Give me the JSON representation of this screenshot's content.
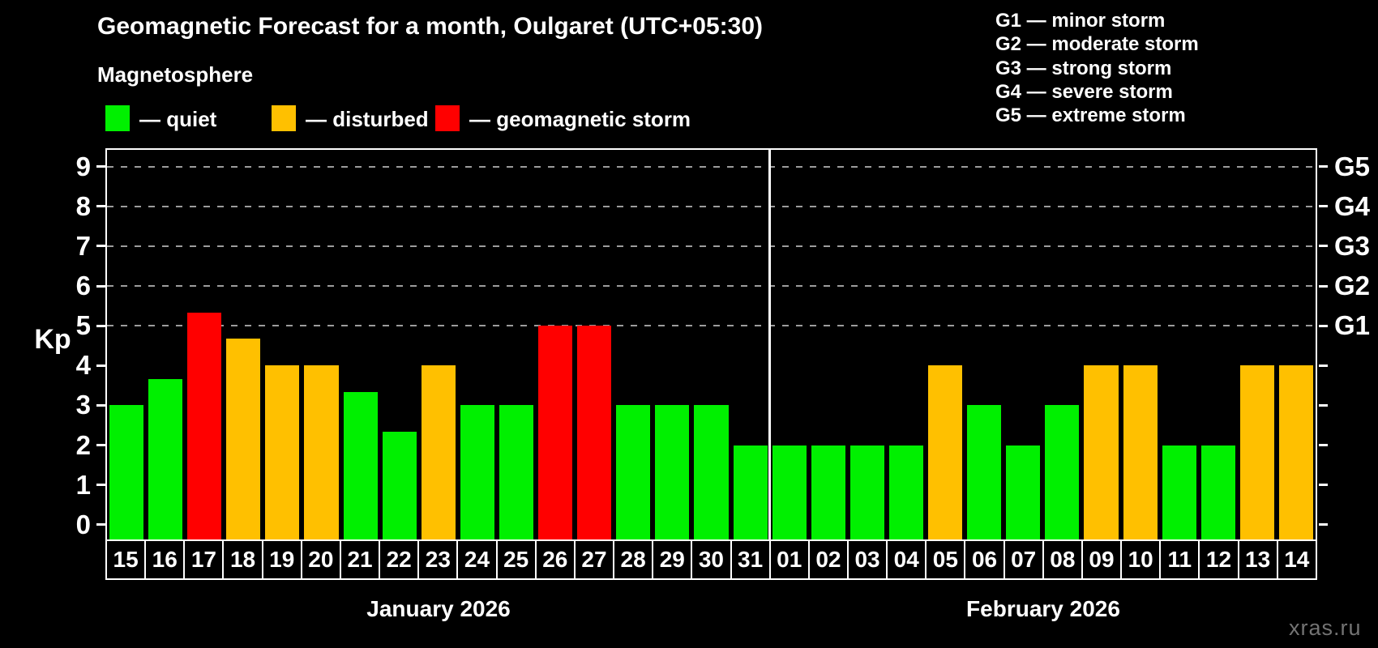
{
  "title": "Geomagnetic Forecast for a month, Oulgaret (UTC+05:30)",
  "subtitle": "Magnetosphere",
  "legend": {
    "items": [
      {
        "key": "quiet",
        "label": "— quiet",
        "color": "#00f000"
      },
      {
        "key": "disturbed",
        "label": "— disturbed",
        "color": "#ffc000"
      },
      {
        "key": "storm",
        "label": "— geomagnetic storm",
        "color": "#ff0000"
      }
    ]
  },
  "g_scale_legend": [
    "G1 — minor storm",
    "G2 — moderate storm",
    "G3 — strong storm",
    "G4 — severe storm",
    "G5 — extreme storm"
  ],
  "watermark": "xras.ru",
  "chart_data": {
    "type": "bar",
    "title": "Geomagnetic Forecast for a month, Oulgaret (UTC+05:30)",
    "ylabel": "Kp",
    "ylim": [
      0,
      9
    ],
    "yticks": [
      0,
      1,
      2,
      3,
      4,
      5,
      6,
      7,
      8,
      9
    ],
    "gridlines_at": [
      5,
      6,
      7,
      8,
      9
    ],
    "grid_style": "dashed horizontal gray lines at Kp 5..9, black background",
    "g_levels": [
      {
        "kp": 5,
        "label": "G1"
      },
      {
        "kp": 6,
        "label": "G2"
      },
      {
        "kp": 7,
        "label": "G3"
      },
      {
        "kp": 8,
        "label": "G4"
      },
      {
        "kp": 9,
        "label": "G5"
      }
    ],
    "status_colors": {
      "quiet": "#00f000",
      "disturbed": "#ffc000",
      "storm": "#ff0000"
    },
    "months": [
      {
        "label": "January 2026",
        "days": 17
      },
      {
        "label": "February 2026",
        "days": 14
      }
    ],
    "bars": [
      {
        "day": "15",
        "value": 3.0,
        "status": "quiet"
      },
      {
        "day": "16",
        "value": 3.67,
        "status": "quiet"
      },
      {
        "day": "17",
        "value": 5.33,
        "status": "storm"
      },
      {
        "day": "18",
        "value": 4.67,
        "status": "disturbed"
      },
      {
        "day": "19",
        "value": 4.0,
        "status": "disturbed"
      },
      {
        "day": "20",
        "value": 4.0,
        "status": "disturbed"
      },
      {
        "day": "21",
        "value": 3.33,
        "status": "quiet"
      },
      {
        "day": "22",
        "value": 2.33,
        "status": "quiet"
      },
      {
        "day": "23",
        "value": 4.0,
        "status": "disturbed"
      },
      {
        "day": "24",
        "value": 3.0,
        "status": "quiet"
      },
      {
        "day": "25",
        "value": 3.0,
        "status": "quiet"
      },
      {
        "day": "26",
        "value": 5.0,
        "status": "storm"
      },
      {
        "day": "27",
        "value": 5.0,
        "status": "storm"
      },
      {
        "day": "28",
        "value": 3.0,
        "status": "quiet"
      },
      {
        "day": "29",
        "value": 3.0,
        "status": "quiet"
      },
      {
        "day": "30",
        "value": 3.0,
        "status": "quiet"
      },
      {
        "day": "31",
        "value": 2.0,
        "status": "quiet"
      },
      {
        "day": "01",
        "value": 2.0,
        "status": "quiet"
      },
      {
        "day": "02",
        "value": 2.0,
        "status": "quiet"
      },
      {
        "day": "03",
        "value": 2.0,
        "status": "quiet"
      },
      {
        "day": "04",
        "value": 2.0,
        "status": "quiet"
      },
      {
        "day": "05",
        "value": 4.0,
        "status": "disturbed"
      },
      {
        "day": "06",
        "value": 3.0,
        "status": "quiet"
      },
      {
        "day": "07",
        "value": 2.0,
        "status": "quiet"
      },
      {
        "day": "08",
        "value": 3.0,
        "status": "quiet"
      },
      {
        "day": "09",
        "value": 4.0,
        "status": "disturbed"
      },
      {
        "day": "10",
        "value": 4.0,
        "status": "disturbed"
      },
      {
        "day": "11",
        "value": 2.0,
        "status": "quiet"
      },
      {
        "day": "12",
        "value": 2.0,
        "status": "quiet"
      },
      {
        "day": "13",
        "value": 4.0,
        "status": "disturbed"
      },
      {
        "day": "14",
        "value": 4.0,
        "status": "disturbed"
      }
    ]
  }
}
